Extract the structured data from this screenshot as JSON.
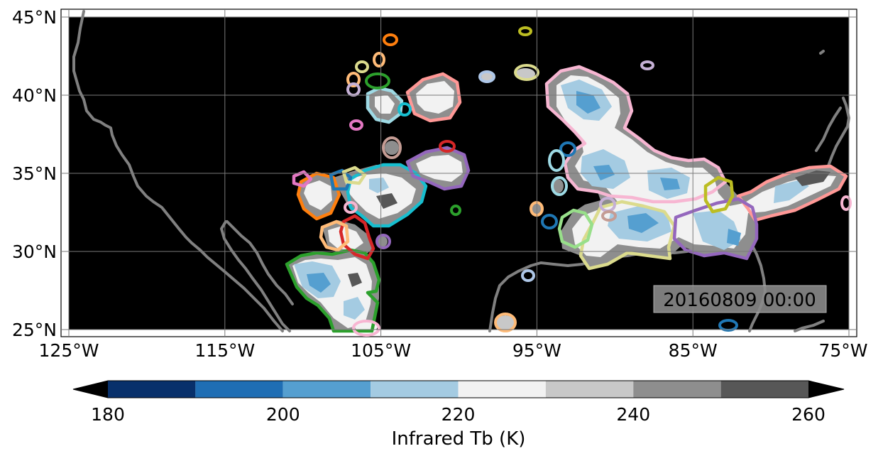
{
  "map": {
    "lon_range": [
      -125,
      -75
    ],
    "lat_range": [
      24.5,
      45.5
    ],
    "lon_ticks": [
      {
        "value": -125,
        "label": "125°W"
      },
      {
        "value": -115,
        "label": "115°W"
      },
      {
        "value": -105,
        "label": "105°W"
      },
      {
        "value": -95,
        "label": "95°W"
      },
      {
        "value": -85,
        "label": "85°W"
      },
      {
        "value": -75,
        "label": "75°W"
      }
    ],
    "lat_ticks": [
      {
        "value": 45,
        "label": "45°N"
      },
      {
        "value": 40,
        "label": "40°N"
      },
      {
        "value": 35,
        "label": "35°N"
      },
      {
        "value": 30,
        "label": "30°N"
      },
      {
        "value": 25,
        "label": "25°N"
      }
    ],
    "grid": true,
    "background_color": "#000000",
    "coastline_color": "#808080",
    "timestamp": "20160809 00:00"
  },
  "colorbar": {
    "label": "Infrared Tb (K)",
    "ticks": [
      {
        "value": 180,
        "label": "180"
      },
      {
        "value": 200,
        "label": "200"
      },
      {
        "value": 220,
        "label": "220"
      },
      {
        "value": 240,
        "label": "240"
      },
      {
        "value": 260,
        "label": "260"
      }
    ],
    "bins": [
      {
        "from": 180,
        "to": 190,
        "color": "#08306b"
      },
      {
        "from": 190,
        "to": 200,
        "color": "#1f6eb4"
      },
      {
        "from": 200,
        "to": 210,
        "color": "#559fd0"
      },
      {
        "from": 210,
        "to": 220,
        "color": "#a4cbe2"
      },
      {
        "from": 220,
        "to": 230,
        "color": "#f2f2f2"
      },
      {
        "from": 230,
        "to": 240,
        "color": "#c8c8c8"
      },
      {
        "from": 240,
        "to": 250,
        "color": "#8e8e8e"
      },
      {
        "from": 250,
        "to": 260,
        "color": "#575757"
      }
    ],
    "under_color": "#000000",
    "over_color": "#000000"
  },
  "cloud_systems": [
    {
      "center_lon": -89.5,
      "center_lat": 36.3,
      "outline_color": "#f7b6d2"
    },
    {
      "center_lon": -79.5,
      "center_lat": 33.6,
      "outline_color": "#ff9896"
    },
    {
      "center_lon": -88.5,
      "center_lat": 31.2,
      "outline_color": "#dbdb8d"
    },
    {
      "center_lon": -82.5,
      "center_lat": 31.5,
      "outline_color": "#9467bd"
    },
    {
      "center_lon": -84.0,
      "center_lat": 33.6,
      "outline_color": "#bcbd22"
    },
    {
      "center_lon": -110.0,
      "center_lat": 27.6,
      "outline_color": "#2ca02c"
    },
    {
      "center_lon": -105.3,
      "center_lat": 33.7,
      "outline_color": "#17becf"
    },
    {
      "center_lon": -101.0,
      "center_lat": 35.1,
      "outline_color": "#9467bd"
    },
    {
      "center_lon": -101.7,
      "center_lat": 39.9,
      "outline_color": "#ff9896"
    },
    {
      "center_lon": -106.0,
      "center_lat": 39.2,
      "outline_color": "#9edae5"
    },
    {
      "center_lon": -107.6,
      "center_lat": 30.6,
      "outline_color": "#d62728"
    },
    {
      "center_lon": -110.2,
      "center_lat": 33.9,
      "outline_color": "#ff7f0e"
    },
    {
      "center_lon": -92.5,
      "center_lat": 31.5,
      "outline_color": "#98df8a"
    }
  ]
}
